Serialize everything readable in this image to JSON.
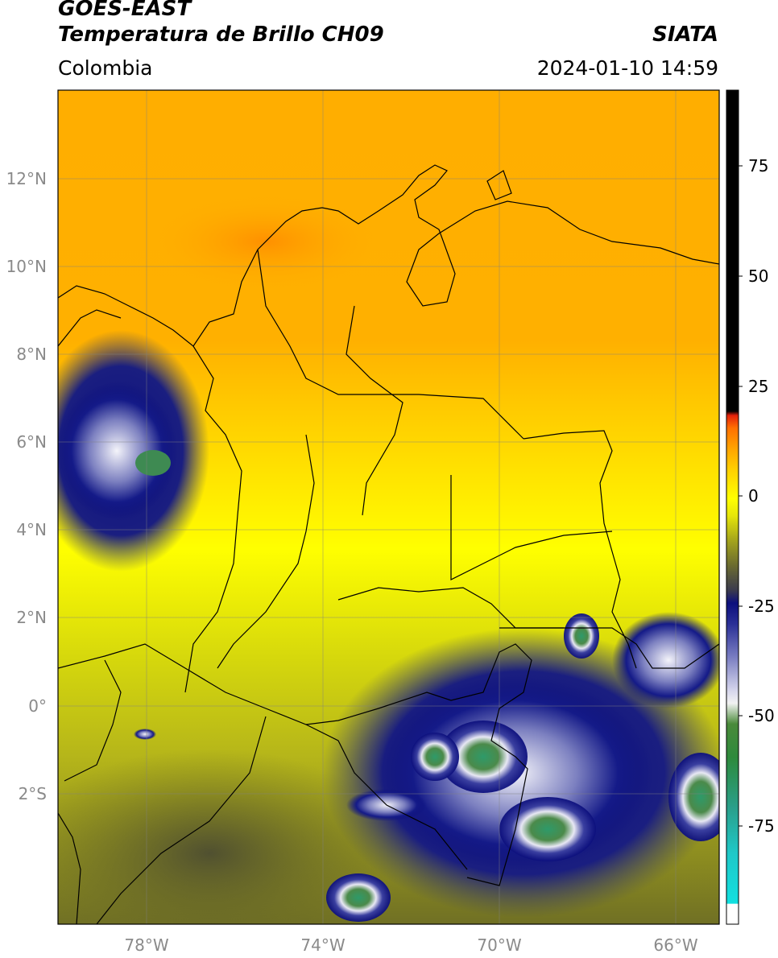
{
  "header": {
    "satellite": "GOES-EAST",
    "product": "Temperatura de Brillo CH09",
    "agency": "SIATA",
    "region": "Colombia",
    "timestamp": "2024-01-10 14:59"
  },
  "map": {
    "lon_ticks": [
      "78°W",
      "74°W",
      "70°W",
      "66°W"
    ],
    "lat_ticks": [
      "12°N",
      "10°N",
      "8°N",
      "6°N",
      "4°N",
      "2°N",
      "0°",
      "2°S"
    ],
    "lon_range": [
      -80,
      -65
    ],
    "lat_range": [
      -5,
      14
    ]
  },
  "colorbar": {
    "ticks": [
      "75",
      "50",
      "25",
      "0",
      "-25",
      "-50",
      "-75"
    ],
    "range": [
      -97,
      90
    ],
    "colors": {
      "warm": "#000000",
      "red": "#e3200b",
      "orange": "#ff9d00",
      "yellow": "#ffff00",
      "olive": "#6b6b26",
      "navy": "#0c0f7d",
      "white": "#ffffff",
      "green": "#2e8a3c",
      "cyan": "#19e3e3"
    }
  }
}
